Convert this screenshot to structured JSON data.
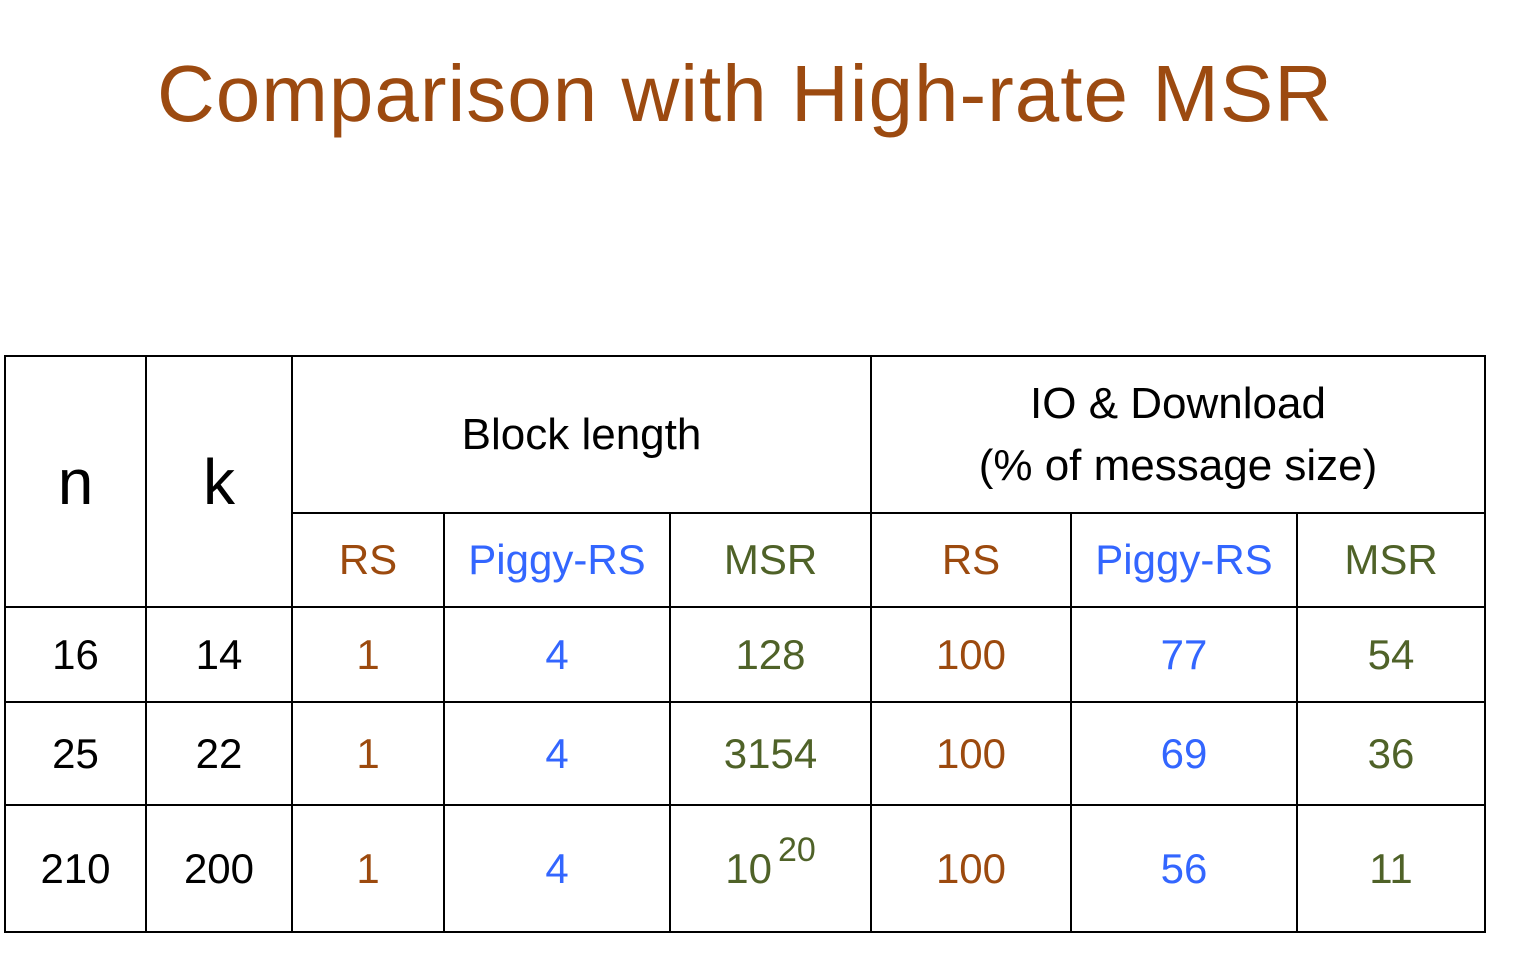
{
  "title": "Comparison with High-rate MSR",
  "colors": {
    "title": "#9C4A10",
    "rs": "#9C4A0E",
    "piggy_rs": "#3366FF",
    "msr": "#4F6228"
  },
  "table": {
    "col_n": "n",
    "col_k": "k",
    "group_block": "Block length",
    "group_io_line1": "IO & Download",
    "group_io_line2": "(% of message size)",
    "sub": [
      "RS",
      "Piggy-RS",
      "MSR",
      "RS",
      "Piggy-RS",
      "MSR"
    ],
    "rows": [
      {
        "n": "16",
        "k": "14",
        "bl_rs": "1",
        "bl_piggy": "4",
        "bl_msr": "128",
        "bl_msr_exp": "",
        "io_rs": "100",
        "io_piggy": "77",
        "io_msr": "54"
      },
      {
        "n": "25",
        "k": "22",
        "bl_rs": "1",
        "bl_piggy": "4",
        "bl_msr": "3154",
        "bl_msr_exp": "",
        "io_rs": "100",
        "io_piggy": "69",
        "io_msr": "36"
      },
      {
        "n": "210",
        "k": "200",
        "bl_rs": "1",
        "bl_piggy": "4",
        "bl_msr": "10",
        "bl_msr_exp": "20",
        "io_rs": "100",
        "io_piggy": "56",
        "io_msr": "11"
      }
    ]
  }
}
